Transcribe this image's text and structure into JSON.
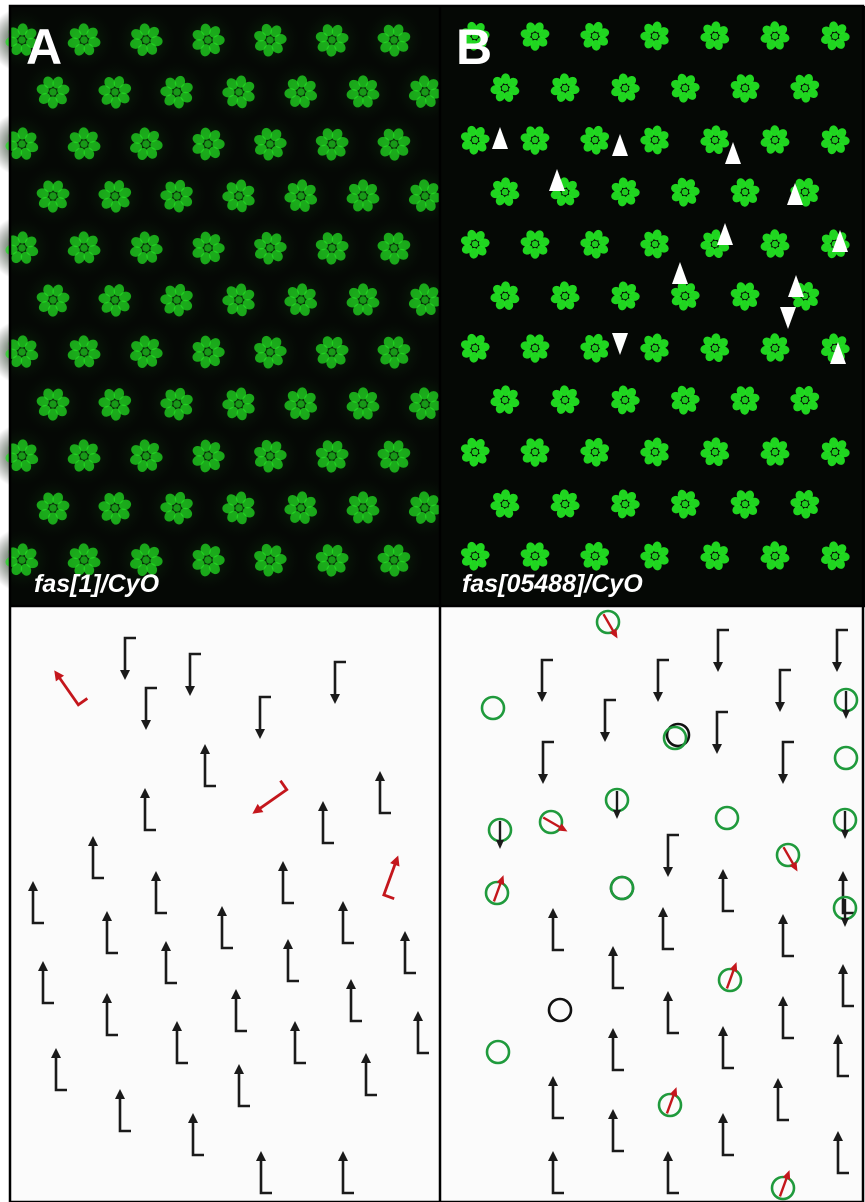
{
  "panels": [
    {
      "id": "A",
      "label": "A",
      "genotype": "fas[1]/CyO",
      "colors": {
        "micro_bg": "#050805",
        "diagram_bg": "#fbfbfb",
        "cell": "#22e022",
        "arrow_normal": "#1a1a1a",
        "arrow_rotated": "#c4161c"
      }
    },
    {
      "id": "B",
      "label": "B",
      "genotype": "fas[05488]/CyO",
      "colors": {
        "micro_bg": "#050805",
        "diagram_bg": "#fbfbfb",
        "cell": "#22e022",
        "arrow_normal": "#1a1a1a",
        "arrow_rotated": "#c4161c",
        "circle_green": "#1f9a3c",
        "circle_black": "#111111",
        "arrowhead_marker": "#ffffff"
      }
    }
  ],
  "legend_semantics": {
    "black_arrow": "correctly oriented ommatidium",
    "red_arrow": "misrotated ommatidium",
    "green_circle": "abnormal ommatidium",
    "black_circle": "unscorable ommatidium",
    "white_arrowhead": "defective ommatidium marker"
  }
}
